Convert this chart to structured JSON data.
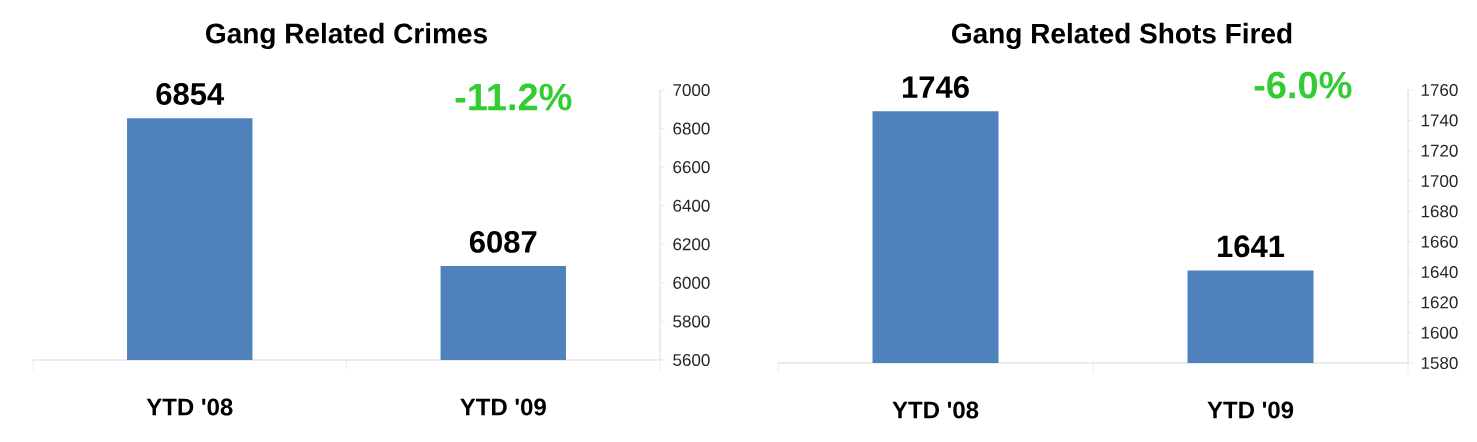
{
  "chart_data": [
    {
      "type": "bar",
      "title": "Gang Related Crimes",
      "categories": [
        "YTD '08",
        "YTD '09"
      ],
      "values": [
        6854,
        6087
      ],
      "color": "#4f81bd",
      "ylim": [
        5600,
        7000
      ],
      "yticks": [
        5600,
        5800,
        6000,
        6200,
        6400,
        6600,
        6800,
        7000
      ],
      "data_labels": true,
      "annotations": [
        "-11.2%"
      ]
    },
    {
      "type": "bar",
      "title": "Gang Related Shots Fired",
      "categories": [
        "YTD '08",
        "YTD '09"
      ],
      "values": [
        1746,
        1641
      ],
      "color": "#4f81bd",
      "ylim": [
        1580,
        1760
      ],
      "yticks": [
        1580,
        1600,
        1620,
        1640,
        1660,
        1680,
        1700,
        1720,
        1740,
        1760
      ],
      "data_labels": true,
      "annotations": [
        "-6.0%"
      ]
    }
  ]
}
